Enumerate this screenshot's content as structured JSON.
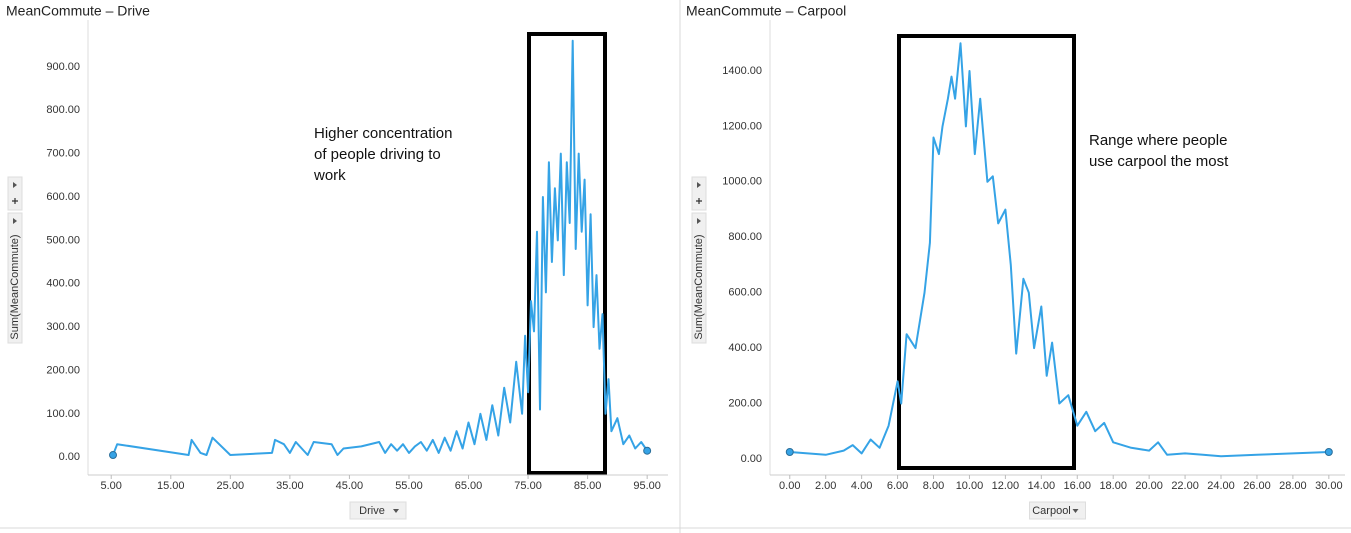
{
  "chart_data": [
    {
      "type": "line",
      "title": "MeanCommute – Drive",
      "xlabel": "Drive",
      "ylabel": "Sum(MeanCommute)",
      "annotation": [
        "Higher concentration",
        "of people driving to",
        "work"
      ],
      "color": "#35a3e6",
      "x": [
        5.3,
        6,
        18,
        18.5,
        20,
        21,
        22,
        25,
        32,
        32.5,
        34,
        35,
        36,
        38,
        39,
        42,
        43,
        44,
        47,
        50,
        51,
        52,
        53,
        54,
        55,
        56,
        57,
        58,
        59,
        60,
        61,
        62,
        63,
        64,
        65,
        66,
        67,
        68,
        69,
        70,
        71,
        72,
        73,
        74,
        74.5,
        75,
        75.5,
        76,
        76.5,
        77,
        77.5,
        78,
        78.5,
        79,
        79.5,
        80,
        80.5,
        81,
        81.5,
        82,
        82.5,
        83,
        83.5,
        84,
        84.5,
        85,
        85.5,
        86,
        86.5,
        87,
        87.5,
        88,
        88.5,
        89,
        90,
        91,
        92,
        93,
        94,
        95
      ],
      "values": [
        5,
        30,
        5,
        40,
        10,
        5,
        45,
        5,
        10,
        40,
        30,
        10,
        35,
        5,
        35,
        30,
        5,
        20,
        25,
        35,
        10,
        30,
        15,
        30,
        10,
        25,
        35,
        15,
        40,
        10,
        45,
        15,
        60,
        20,
        80,
        30,
        100,
        40,
        120,
        50,
        160,
        80,
        220,
        100,
        280,
        150,
        360,
        290,
        520,
        110,
        600,
        380,
        680,
        450,
        620,
        500,
        700,
        420,
        680,
        540,
        960,
        480,
        700,
        520,
        640,
        350,
        560,
        300,
        420,
        250,
        330,
        100,
        180,
        60,
        90,
        30,
        50,
        20,
        35,
        15
      ],
      "xlim": [
        1.1,
        98.5
      ],
      "ylim": [
        -41,
        985
      ],
      "xticks": [
        {
          "value": 5,
          "label": "5.00"
        },
        {
          "value": 15,
          "label": "15.00"
        },
        {
          "value": 25,
          "label": "25.00"
        },
        {
          "value": 35,
          "label": "35.00"
        },
        {
          "value": 45,
          "label": "45.00"
        },
        {
          "value": 55,
          "label": "55.00"
        },
        {
          "value": 65,
          "label": "65.00"
        },
        {
          "value": 75,
          "label": "75.00"
        },
        {
          "value": 85,
          "label": "85.00"
        },
        {
          "value": 95,
          "label": "95.00"
        }
      ],
      "yticks": [
        {
          "value": 0,
          "label": "0.00"
        },
        {
          "value": 100,
          "label": "100.00"
        },
        {
          "value": 200,
          "label": "200.00"
        },
        {
          "value": 300,
          "label": "300.00"
        },
        {
          "value": 400,
          "label": "400.00"
        },
        {
          "value": 500,
          "label": "500.00"
        },
        {
          "value": 600,
          "label": "600.00"
        },
        {
          "value": 700,
          "label": "700.00"
        },
        {
          "value": 800,
          "label": "800.00"
        },
        {
          "value": 900,
          "label": "900.00"
        }
      ],
      "grid": false
    },
    {
      "type": "line",
      "title": "MeanCommute – Carpool",
      "xlabel": "Carpool",
      "ylabel": "Sum(MeanCommute)",
      "annotation": [
        "Range where people",
        "use carpool the most"
      ],
      "color": "#35a3e6",
      "x": [
        0,
        1,
        2,
        3,
        3.5,
        4,
        4.5,
        5,
        5.5,
        6,
        6.2,
        6.5,
        7,
        7.5,
        7.8,
        8,
        8.3,
        8.5,
        8.8,
        9,
        9.2,
        9.5,
        9.8,
        10,
        10.3,
        10.6,
        11,
        11.3,
        11.6,
        12,
        12.3,
        12.6,
        13,
        13.3,
        13.6,
        14,
        14.3,
        14.6,
        15,
        15.5,
        16,
        16.5,
        17,
        17.5,
        18,
        19,
        20,
        20.5,
        21,
        22,
        23,
        24,
        26,
        28,
        30
      ],
      "values": [
        25,
        20,
        15,
        30,
        50,
        20,
        70,
        40,
        120,
        280,
        200,
        450,
        400,
        600,
        780,
        1160,
        1100,
        1200,
        1300,
        1380,
        1300,
        1500,
        1200,
        1400,
        1100,
        1300,
        1000,
        1020,
        850,
        900,
        700,
        380,
        650,
        600,
        400,
        550,
        300,
        420,
        200,
        230,
        120,
        170,
        100,
        130,
        60,
        40,
        30,
        60,
        15,
        20,
        15,
        10,
        15,
        20,
        25
      ],
      "xlim": [
        -1.1,
        30.9
      ],
      "ylim": [
        -58,
        1548
      ],
      "xticks": [
        {
          "value": 0,
          "label": "0.00"
        },
        {
          "value": 2,
          "label": "2.00"
        },
        {
          "value": 4,
          "label": "4.00"
        },
        {
          "value": 6,
          "label": "6.00"
        },
        {
          "value": 8,
          "label": "8.00"
        },
        {
          "value": 10,
          "label": "10.00"
        },
        {
          "value": 12,
          "label": "12.00"
        },
        {
          "value": 14,
          "label": "14.00"
        },
        {
          "value": 16,
          "label": "16.00"
        },
        {
          "value": 18,
          "label": "18.00"
        },
        {
          "value": 20,
          "label": "20.00"
        },
        {
          "value": 22,
          "label": "22.00"
        },
        {
          "value": 24,
          "label": "24.00"
        },
        {
          "value": 26,
          "label": "26.00"
        },
        {
          "value": 28,
          "label": "28.00"
        },
        {
          "value": 30,
          "label": "30.00"
        }
      ],
      "yticks": [
        {
          "value": 0,
          "label": "0.00"
        },
        {
          "value": 200,
          "label": "200.00"
        },
        {
          "value": 400,
          "label": "400.00"
        },
        {
          "value": 600,
          "label": "600.00"
        },
        {
          "value": 800,
          "label": "800.00"
        },
        {
          "value": 1000,
          "label": "1000.00"
        },
        {
          "value": 1200,
          "label": "1200.00"
        },
        {
          "value": 1400,
          "label": "1400.00"
        }
      ],
      "grid": false
    }
  ]
}
